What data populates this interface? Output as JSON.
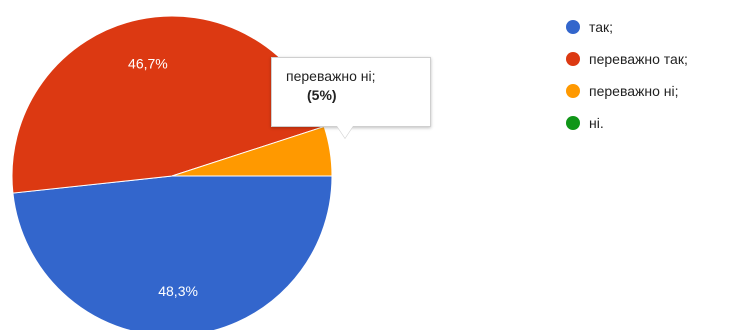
{
  "chart_data": {
    "type": "pie",
    "title": "",
    "categories": [
      "так;",
      "переважно так;",
      "переважно ні;",
      "ні."
    ],
    "values": [
      48.3,
      46.7,
      5.0,
      0
    ],
    "labels": [
      "48,3%",
      "46,7%",
      "",
      ""
    ],
    "colors": [
      "#3366cc",
      "#dc3912",
      "#ff9900",
      "#109618"
    ],
    "legend_position": "right"
  },
  "tooltip": {
    "name": "переважно ні;",
    "value": "(5%)"
  }
}
